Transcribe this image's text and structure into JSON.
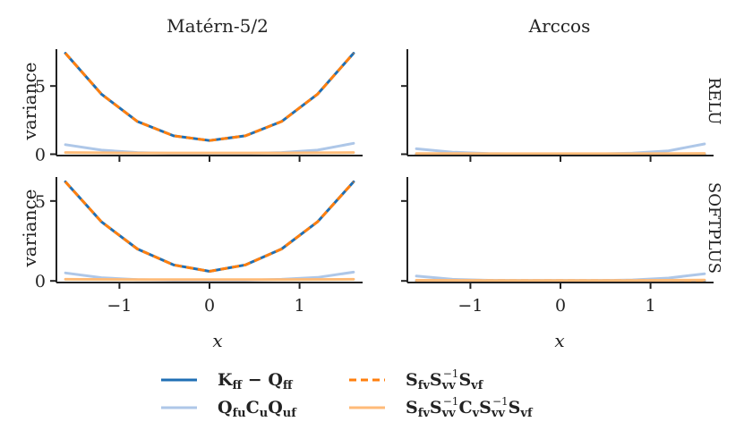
{
  "colors": {
    "kff_minus_qff": "#1f6fb4",
    "qfu_cu_quf": "#aec7e8",
    "sfv_svv_svf": "#ff7f0e",
    "sfv_cv_svf": "#ffbb78",
    "axis": "#222222"
  },
  "chart_data": [
    {
      "type": "line",
      "title": "Matérn-5/2",
      "row_label": "RELU",
      "xlabel": "",
      "ylabel": "variance",
      "xlim": [
        -1.7,
        1.7
      ],
      "ylim": [
        -0.1,
        7.7
      ],
      "xticks": [
        -1,
        0,
        1
      ],
      "yticks": [
        0,
        5
      ],
      "series": [
        {
          "name": "Kff − Qff",
          "color_key": "kff_minus_qff",
          "x": [
            -1.6,
            -1.2,
            -0.8,
            -0.4,
            0,
            0.4,
            0.8,
            1.2,
            1.6
          ],
          "y": [
            7.4,
            4.4,
            2.4,
            1.35,
            1.0,
            1.35,
            2.4,
            4.4,
            7.4
          ]
        },
        {
          "name": "QfuCuQuf",
          "color_key": "qfu_cu_quf",
          "x": [
            -1.6,
            -1.2,
            -0.8,
            -0.4,
            0,
            0.4,
            0.8,
            1.2,
            1.6
          ],
          "y": [
            0.7,
            0.3,
            0.12,
            0.06,
            0.05,
            0.06,
            0.12,
            0.3,
            0.8
          ]
        },
        {
          "name": "SfvSvv−1Svf",
          "color_key": "sfv_svv_svf",
          "dashed": true,
          "x": [
            -1.6,
            -1.2,
            -0.8,
            -0.4,
            0,
            0.4,
            0.8,
            1.2,
            1.6
          ],
          "y": [
            7.4,
            4.4,
            2.4,
            1.35,
            1.0,
            1.35,
            2.4,
            4.4,
            7.4
          ]
        },
        {
          "name": "SfvSvv−1CvSvv−1Svf",
          "color_key": "sfv_cv_svf",
          "x": [
            -1.6,
            -1.2,
            -0.8,
            -0.4,
            0,
            0.4,
            0.8,
            1.2,
            1.6
          ],
          "y": [
            0.12,
            0.1,
            0.09,
            0.09,
            0.09,
            0.09,
            0.09,
            0.1,
            0.12
          ]
        }
      ]
    },
    {
      "type": "line",
      "title": "Arccos",
      "row_label": "RELU",
      "xlabel": "",
      "ylabel": "",
      "xlim": [
        -1.7,
        1.7
      ],
      "ylim": [
        -0.1,
        7.7
      ],
      "xticks": [
        -1,
        0,
        1
      ],
      "yticks": [
        0,
        5
      ],
      "series": [
        {
          "name": "Kff − Qff",
          "color_key": "kff_minus_qff",
          "x": [
            -1.6,
            -0.8,
            0,
            0.8,
            1.6
          ],
          "y": [
            0.02,
            0.02,
            0.02,
            0.02,
            0.02
          ]
        },
        {
          "name": "QfuCuQuf",
          "color_key": "qfu_cu_quf",
          "x": [
            -1.6,
            -1.2,
            -0.8,
            -0.4,
            0,
            0.4,
            0.8,
            1.2,
            1.6
          ],
          "y": [
            0.4,
            0.15,
            0.05,
            0.02,
            0.02,
            0.02,
            0.08,
            0.25,
            0.75
          ]
        },
        {
          "name": "SfvSvv−1Svf",
          "color_key": "sfv_svv_svf",
          "dashed": true,
          "x": [
            -1.6,
            -0.8,
            0,
            0.8,
            1.6
          ],
          "y": [
            0.02,
            0.02,
            0.02,
            0.02,
            0.02
          ]
        },
        {
          "name": "SfvSvv−1CvSvv−1Svf",
          "color_key": "sfv_cv_svf",
          "x": [
            -1.6,
            -0.8,
            0,
            0.8,
            1.6
          ],
          "y": [
            0.05,
            0.04,
            0.04,
            0.04,
            0.06
          ]
        }
      ]
    },
    {
      "type": "line",
      "title": "",
      "row_label": "SOFTPLUS",
      "xlabel": "x",
      "ylabel": "variance",
      "xlim": [
        -1.7,
        1.7
      ],
      "ylim": [
        -0.1,
        6.5
      ],
      "xticks": [
        -1,
        0,
        1
      ],
      "yticks": [
        0,
        5
      ],
      "series": [
        {
          "name": "Kff − Qff",
          "color_key": "kff_minus_qff",
          "x": [
            -1.6,
            -1.2,
            -0.8,
            -0.4,
            0,
            0.4,
            0.8,
            1.2,
            1.6
          ],
          "y": [
            6.2,
            3.7,
            2.0,
            1.0,
            0.6,
            1.0,
            2.0,
            3.7,
            6.2
          ]
        },
        {
          "name": "QfuCuQuf",
          "color_key": "qfu_cu_quf",
          "x": [
            -1.6,
            -1.2,
            -0.8,
            -0.4,
            0,
            0.4,
            0.8,
            1.2,
            1.6
          ],
          "y": [
            0.5,
            0.2,
            0.08,
            0.04,
            0.03,
            0.04,
            0.1,
            0.22,
            0.55
          ]
        },
        {
          "name": "SfvSvv−1Svf",
          "color_key": "sfv_svv_svf",
          "dashed": true,
          "x": [
            -1.6,
            -1.2,
            -0.8,
            -0.4,
            0,
            0.4,
            0.8,
            1.2,
            1.6
          ],
          "y": [
            6.2,
            3.7,
            2.0,
            1.0,
            0.6,
            1.0,
            2.0,
            3.7,
            6.2
          ]
        },
        {
          "name": "SfvSvv−1CvSvv−1Svf",
          "color_key": "sfv_cv_svf",
          "x": [
            -1.6,
            -0.8,
            0,
            0.8,
            1.6
          ],
          "y": [
            0.1,
            0.08,
            0.08,
            0.08,
            0.1
          ]
        }
      ]
    },
    {
      "type": "line",
      "title": "",
      "row_label": "SOFTPLUS",
      "xlabel": "x",
      "ylabel": "",
      "xlim": [
        -1.7,
        1.7
      ],
      "ylim": [
        -0.1,
        6.5
      ],
      "xticks": [
        -1,
        0,
        1
      ],
      "yticks": [
        0,
        5
      ],
      "series": [
        {
          "name": "Kff − Qff",
          "color_key": "kff_minus_qff",
          "x": [
            -1.6,
            -0.8,
            0,
            0.8,
            1.6
          ],
          "y": [
            0.02,
            0.02,
            0.02,
            0.02,
            0.02
          ]
        },
        {
          "name": "QfuCuQuf",
          "color_key": "qfu_cu_quf",
          "x": [
            -1.6,
            -1.2,
            -0.8,
            -0.4,
            0,
            0.4,
            0.8,
            1.2,
            1.6
          ],
          "y": [
            0.3,
            0.1,
            0.04,
            0.02,
            0.02,
            0.02,
            0.06,
            0.18,
            0.45
          ]
        },
        {
          "name": "SfvSvv−1Svf",
          "color_key": "sfv_svv_svf",
          "dashed": true,
          "x": [
            -1.6,
            -0.8,
            0,
            0.8,
            1.6
          ],
          "y": [
            0.02,
            0.02,
            0.02,
            0.02,
            0.02
          ]
        },
        {
          "name": "SfvSvv−1CvSvv−1Svf",
          "color_key": "sfv_cv_svf",
          "x": [
            -1.6,
            -0.8,
            0,
            0.8,
            1.6
          ],
          "y": [
            0.04,
            0.03,
            0.03,
            0.03,
            0.05
          ]
        }
      ]
    }
  ],
  "legend": {
    "placement": "bottom-center",
    "entries": [
      {
        "id": "kff",
        "color_key": "kff_minus_qff",
        "dashed": false,
        "main": "K",
        "sub1": "ff",
        "mid": " − Q",
        "sub2": "ff"
      },
      {
        "id": "qcq",
        "color_key": "qfu_cu_quf",
        "dashed": false
      },
      {
        "id": "sss",
        "color_key": "sfv_svv_svf",
        "dashed": true
      },
      {
        "id": "scs",
        "color_key": "sfv_cv_svf",
        "dashed": false
      }
    ],
    "labels": {
      "kff_K": "K",
      "kff_ff1": "ff",
      "kff_mid": " − Q",
      "kff_ff2": "ff",
      "qcq_Q1": "Q",
      "qcq_fu": "fu",
      "qcq_C": "C",
      "qcq_u": "u",
      "qcq_Q2": "Q",
      "qcq_uf": "uf",
      "sss_S1": "S",
      "sss_fv": "fv",
      "sss_S2": "S",
      "sss_vv": "vv",
      "sss_inv": "−1",
      "sss_S3": "S",
      "sss_vf": "vf",
      "scs_S1": "S",
      "scs_fv": "fv",
      "scs_S2": "S",
      "scs_vv1": "vv",
      "scs_inv1": "−1",
      "scs_C": "C",
      "scs_v": "v",
      "scs_S3": "S",
      "scs_vv2": "vv",
      "scs_inv2": "−1",
      "scs_S4": "S",
      "scs_vf": "vf"
    }
  }
}
